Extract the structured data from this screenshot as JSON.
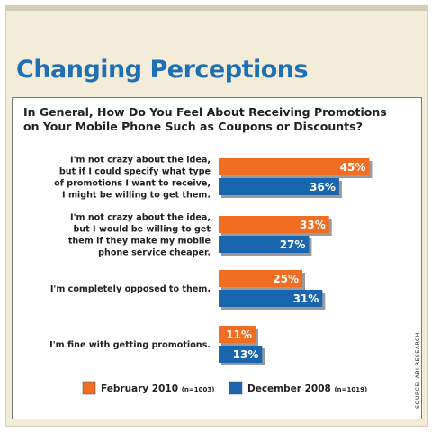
{
  "page_title": "Changing Perceptions",
  "question": "In General, How Do You Feel About Receiving Promotions on Your Mobile Phone Such as Coupons or Discounts?",
  "source": "SOURCE: ABI RESEARCH",
  "colors": {
    "feb2010": "#f06d22",
    "dec2008": "#1a66ae",
    "title": "#1f6fb5",
    "background": "#f3ecd9"
  },
  "chart_data": {
    "type": "bar",
    "orientation": "horizontal",
    "categories": [
      [
        "I'm not crazy about the idea,",
        "but if I could specify what type",
        "of promotions I want to receive,",
        "I might be willing to get them."
      ],
      [
        "I'm not crazy about the idea,",
        "but I would be willing to get",
        "them if they make my mobile",
        "phone service cheaper."
      ],
      [
        "I'm completely opposed to them."
      ],
      [
        "I'm fine with getting promotions."
      ]
    ],
    "series": [
      {
        "name": "February 2010",
        "n_label": "(n=1003)",
        "values": [
          45,
          33,
          25,
          11
        ],
        "value_labels": [
          "45%",
          "33%",
          "25%",
          "11%"
        ]
      },
      {
        "name": "December 2008",
        "n_label": "(n=1019)",
        "values": [
          36,
          27,
          31,
          13
        ],
        "value_labels": [
          "36%",
          "27%",
          "31%",
          "13%"
        ]
      }
    ],
    "value_unit": "%",
    "xlim": [
      0,
      50
    ],
    "axes_visible": false,
    "grid": false,
    "legend_position": "bottom"
  }
}
